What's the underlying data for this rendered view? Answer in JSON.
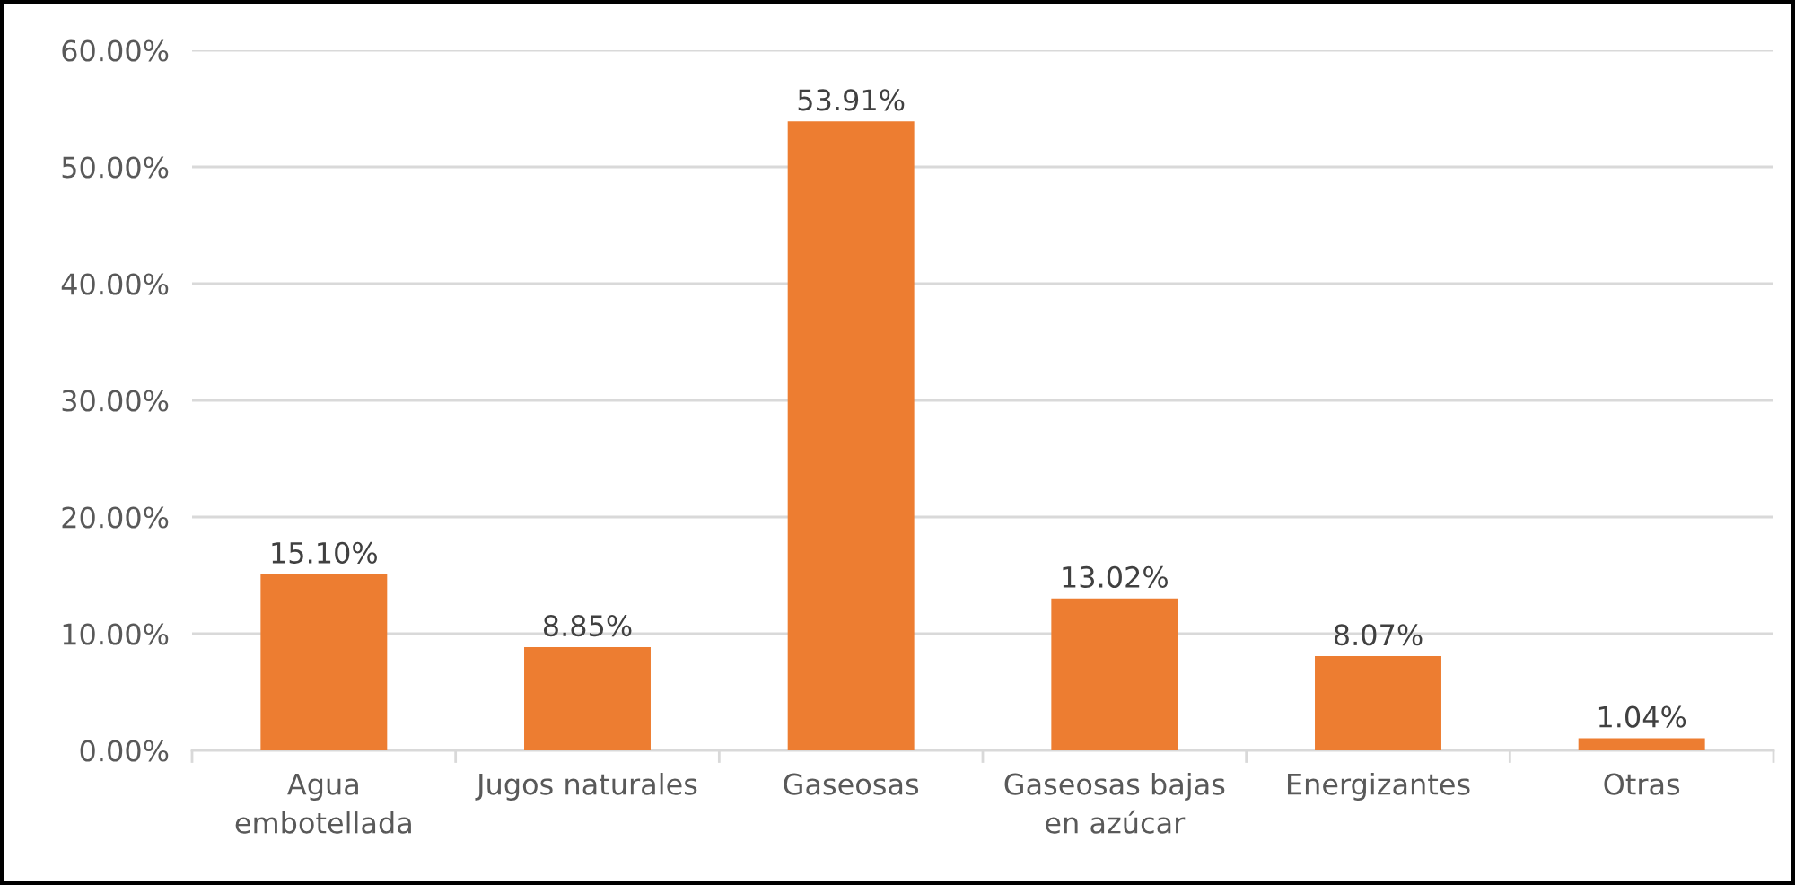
{
  "chart_data": {
    "type": "bar",
    "categories": [
      "Agua\nembotellada",
      "Jugos naturales",
      "Gaseosas",
      "Gaseosas bajas\nen azúcar",
      "Energizantes",
      "Otras"
    ],
    "values": [
      15.1,
      8.85,
      53.91,
      13.02,
      8.07,
      1.04
    ],
    "color": "#ed7d31",
    "value_labels": [
      "15.10%",
      "8.85%",
      "53.91%",
      "13.02%",
      "8.07%",
      "1.04%"
    ],
    "ylim": [
      0,
      60
    ],
    "yticks": [
      {
        "value": 0,
        "label": "0.00%"
      },
      {
        "value": 10,
        "label": "10.00%"
      },
      {
        "value": 20,
        "label": "20.00%"
      },
      {
        "value": 30,
        "label": "30.00%"
      },
      {
        "value": 40,
        "label": "40.00%"
      },
      {
        "value": 50,
        "label": "50.00%"
      },
      {
        "value": 60,
        "label": "60.00%"
      }
    ],
    "grid": "y"
  }
}
